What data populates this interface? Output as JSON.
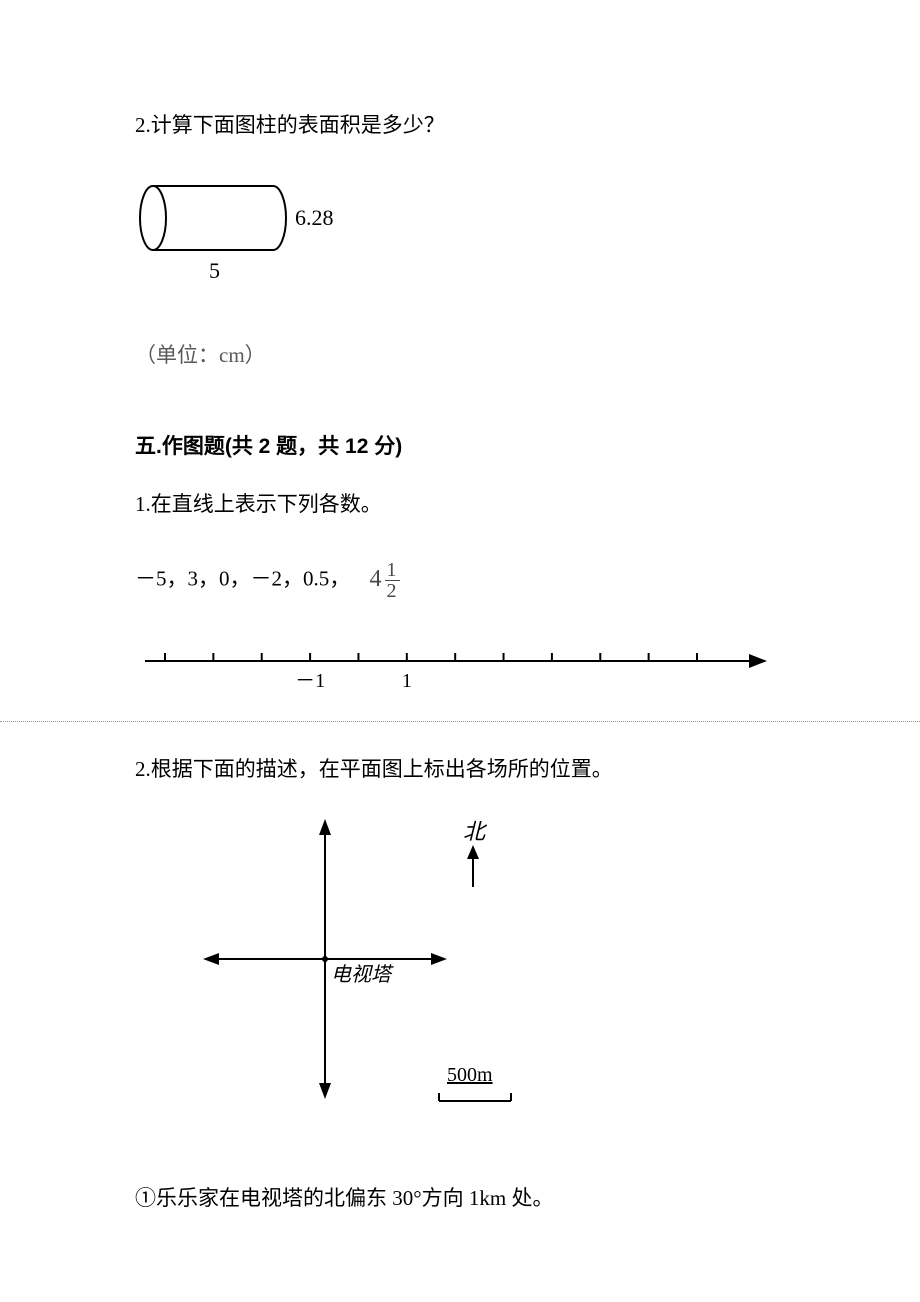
{
  "q2_prompt": "2.计算下面图柱的表面积是多少？",
  "cylinder": {
    "height_label": "6.28",
    "length_label": "5",
    "stroke": "#000000",
    "stroke_width": 2
  },
  "unit_note": "（单位：cm）",
  "section5_header": "五.作图题(共 2 题，共 12 分)",
  "s5_q1_prompt": "1.在直线上表示下列各数。",
  "s5_q1_numbers_prefix": "－5，3，0，－2，0.5，",
  "s5_q1_mixed_whole": "4",
  "s5_q1_mixed_num": "1",
  "s5_q1_mixed_den": "2",
  "number_line": {
    "tick_count": 12,
    "labels": {
      "3": "－1",
      "5": "1"
    },
    "stroke": "#000000",
    "stroke_width": 2,
    "label_fontsize": 20,
    "label_font": "Times New Roman"
  },
  "dotted_color": "#b58a8a",
  "s5_q2_prompt": "2.根据下面的描述，在平面图上标出各场所的位置。",
  "compass": {
    "north_label": "北",
    "center_label": "电视塔",
    "scale_label": "500m",
    "stroke": "#000000",
    "stroke_width": 2
  },
  "s5_q2_item1": "①乐乐家在电视塔的北偏东 30°方向 1km 处。"
}
